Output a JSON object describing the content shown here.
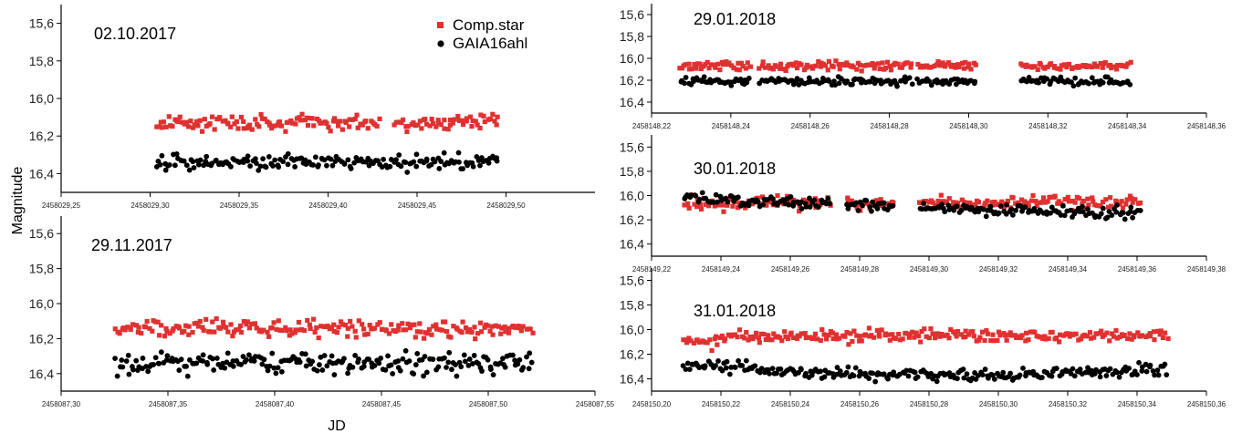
{
  "figure": {
    "ylabel": "Magnitude",
    "xlabel": "JD",
    "legend": [
      "Comp.star",
      "GAIA16ahl"
    ]
  },
  "colors": {
    "comp_star": "#e03131",
    "gaia": "#000000"
  },
  "chart_data": [
    {
      "type": "scatter",
      "title": "02.10.2017",
      "xlabel": "",
      "ylabel": "",
      "xlim": [
        2458029.25,
        2458029.55
      ],
      "ylim": [
        15.5,
        16.5
      ],
      "y_inverted": true,
      "x_ticks": [
        "2458029,25",
        "2458029,30",
        "2458029,35",
        "2458029,40",
        "2458029,45",
        "2458029,50"
      ],
      "y_ticks": [
        "15,6",
        "15,8",
        "16,0",
        "16,2",
        "16,4"
      ],
      "legend_position": "top-right",
      "series": [
        {
          "name": "Comp.star",
          "segments": [
            [
              2458029.303,
              2458029.429
            ],
            [
              2458029.437,
              2458029.496
            ]
          ],
          "mean": 16.13,
          "scatter": 0.02
        },
        {
          "name": "GAIA16ahl",
          "segments": [
            [
              2458029.303,
              2458029.496
            ]
          ],
          "mean": 16.34,
          "scatter": 0.02
        }
      ]
    },
    {
      "type": "scatter",
      "title": "29.11.2017",
      "xlabel": "",
      "ylabel": "",
      "xlim": [
        2458087.3,
        2458087.55
      ],
      "ylim": [
        15.5,
        16.5
      ],
      "y_inverted": true,
      "x_ticks": [
        "2458087,30",
        "2458087,35",
        "2458087,40",
        "2458087,45",
        "2458087,50",
        "2458087,55"
      ],
      "y_ticks": [
        "15,6",
        "15,8",
        "16,0",
        "16,2",
        "16,4"
      ],
      "series": [
        {
          "name": "Comp.star",
          "segments": [
            [
              2458087.325,
              2458087.521
            ]
          ],
          "mean": 16.14,
          "scatter": 0.025
        },
        {
          "name": "GAIA16ahl",
          "segments": [
            [
              2458087.325,
              2458087.521
            ]
          ],
          "mean": 16.34,
          "scatter": 0.03
        }
      ]
    },
    {
      "type": "scatter",
      "title": "29.01.2018",
      "xlabel": "",
      "ylabel": "",
      "xlim": [
        2458148.22,
        2458148.36
      ],
      "ylim": [
        15.5,
        16.5
      ],
      "y_inverted": true,
      "x_ticks": [
        "2458148,22",
        "2458148,24",
        "2458148,26",
        "2458148,28",
        "2458148,30",
        "2458148,32",
        "2458148,34",
        "2458148,36"
      ],
      "y_ticks": [
        "15,6",
        "15,8",
        "16,0",
        "16,2",
        "16,4"
      ],
      "series": [
        {
          "name": "Comp.star",
          "segments": [
            [
              2458148.227,
              2458148.245
            ],
            [
              2458148.247,
              2458148.286
            ],
            [
              2458148.287,
              2458148.302
            ],
            [
              2458148.313,
              2458148.341
            ]
          ],
          "mean": 16.07,
          "scatter": 0.02
        },
        {
          "name": "GAIA16ahl",
          "segments": [
            [
              2458148.227,
              2458148.245
            ],
            [
              2458148.247,
              2458148.286
            ],
            [
              2458148.287,
              2458148.302
            ],
            [
              2458148.313,
              2458148.341
            ]
          ],
          "mean": 16.21,
          "scatter": 0.02
        }
      ]
    },
    {
      "type": "scatter",
      "title": "30.01.2018",
      "xlabel": "",
      "ylabel": "",
      "xlim": [
        2458149.22,
        2458149.38
      ],
      "ylim": [
        15.5,
        16.5
      ],
      "y_inverted": true,
      "x_ticks": [
        "2458149,22",
        "2458149,24",
        "2458149,26",
        "2458149,28",
        "2458149,30",
        "2458149,32",
        "2458149,34",
        "2458149,36",
        "2458149,38"
      ],
      "y_ticks": [
        "15,6",
        "15,8",
        "16,0",
        "16,2",
        "16,4"
      ],
      "series": [
        {
          "name": "Comp.star",
          "segments": [
            [
              2458149.229,
              2458149.272
            ],
            [
              2458149.276,
              2458149.29
            ],
            [
              2458149.297,
              2458149.361
            ]
          ],
          "mean": 16.06,
          "scatter": 0.025
        },
        {
          "name": "GAIA16ahl",
          "segments": [
            [
              2458149.229,
              2458149.272
            ],
            [
              2458149.276,
              2458149.29
            ],
            [
              2458149.297,
              2458149.361
            ]
          ],
          "mean": 16.08,
          "scatter": 0.025
        }
      ]
    },
    {
      "type": "scatter",
      "title": "31.01.2018",
      "xlabel": "",
      "ylabel": "",
      "xlim": [
        2458150.2,
        2458150.36
      ],
      "ylim": [
        15.5,
        16.5
      ],
      "y_inverted": true,
      "x_ticks": [
        "2458150,20",
        "2458150,22",
        "2458150,24",
        "2458150,26",
        "2458150,28",
        "2458150,30",
        "2458150,32",
        "2458150,34",
        "2458150,36"
      ],
      "y_ticks": [
        "15,6",
        "15,8",
        "16,0",
        "16,2",
        "16,4"
      ],
      "series": [
        {
          "name": "Comp.star",
          "segments": [
            [
              2458150.209,
              2458150.349
            ]
          ],
          "mean": 16.05,
          "scatter": 0.025
        },
        {
          "name": "GAIA16ahl",
          "segments": [
            [
              2458150.209,
              2458150.349
            ]
          ],
          "mean": 16.34,
          "scatter": 0.025
        }
      ]
    }
  ]
}
